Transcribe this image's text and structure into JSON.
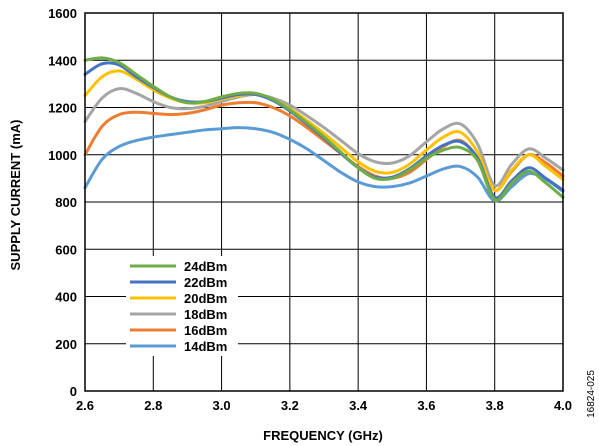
{
  "chart_data": {
    "type": "line",
    "xlabel": "FREQUENCY (GHz)",
    "ylabel": "SUPPLY CURRENT (mA)",
    "xlim": [
      2.6,
      4.0
    ],
    "ylim": [
      0,
      1600
    ],
    "x_ticks": [
      "2.6",
      "2.8",
      "3.0",
      "3.2",
      "3.4",
      "3.6",
      "3.8",
      "4.0"
    ],
    "y_ticks": [
      "0",
      "200",
      "400",
      "600",
      "800",
      "1000",
      "1200",
      "1400",
      "1600"
    ],
    "grid": true,
    "legend_position": "lower-left",
    "figure_id": "16824-025",
    "x": [
      2.6,
      2.65,
      2.7,
      2.75,
      2.8,
      2.85,
      2.9,
      2.95,
      3.0,
      3.05,
      3.1,
      3.15,
      3.2,
      3.25,
      3.3,
      3.35,
      3.4,
      3.45,
      3.5,
      3.55,
      3.6,
      3.65,
      3.7,
      3.75,
      3.8,
      3.85,
      3.9,
      3.95,
      4.0
    ],
    "series": [
      {
        "name": "24dBm",
        "color": "#70ad47",
        "values": [
          1400,
          1410,
          1390,
          1340,
          1290,
          1245,
          1220,
          1225,
          1245,
          1260,
          1260,
          1235,
          1190,
          1135,
          1075,
          1010,
          945,
          900,
          900,
          935,
          985,
          1020,
          1030,
          975,
          810,
          880,
          930,
          880,
          820
        ]
      },
      {
        "name": "22dBm",
        "color": "#4472c4",
        "values": [
          1340,
          1385,
          1380,
          1330,
          1285,
          1245,
          1225,
          1225,
          1240,
          1255,
          1255,
          1230,
          1185,
          1130,
          1070,
          1005,
          945,
          905,
          905,
          940,
          995,
          1040,
          1055,
          985,
          820,
          890,
          945,
          900,
          850
        ]
      },
      {
        "name": "20dBm",
        "color": "#ffc000",
        "values": [
          1250,
          1330,
          1355,
          1320,
          1275,
          1240,
          1220,
          1220,
          1235,
          1250,
          1255,
          1235,
          1195,
          1145,
          1090,
          1030,
          970,
          930,
          925,
          960,
          1020,
          1075,
          1095,
          1010,
          850,
          935,
          1000,
          950,
          895
        ]
      },
      {
        "name": "18dBm",
        "color": "#a5a5a5",
        "values": [
          1140,
          1240,
          1280,
          1260,
          1225,
          1200,
          1195,
          1205,
          1225,
          1245,
          1255,
          1240,
          1210,
          1165,
          1115,
          1060,
          1005,
          970,
          965,
          995,
          1055,
          1110,
          1130,
          1045,
          870,
          960,
          1025,
          985,
          935
        ]
      },
      {
        "name": "16dBm",
        "color": "#ed7d31",
        "values": [
          1000,
          1120,
          1170,
          1180,
          1175,
          1170,
          1175,
          1190,
          1210,
          1220,
          1220,
          1200,
          1165,
          1115,
          1060,
          1005,
          950,
          910,
          900,
          925,
          980,
          1035,
          1060,
          985,
          850,
          930,
          1000,
          965,
          910
        ]
      },
      {
        "name": "14dBm",
        "color": "#5b9bd5",
        "values": [
          860,
          980,
          1035,
          1060,
          1075,
          1085,
          1095,
          1105,
          1110,
          1115,
          1110,
          1095,
          1065,
          1025,
          975,
          925,
          885,
          865,
          865,
          880,
          910,
          940,
          950,
          905,
          805,
          865,
          920,
          895,
          845
        ]
      }
    ]
  }
}
